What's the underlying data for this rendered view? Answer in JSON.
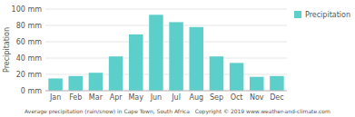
{
  "chart_data": {
    "type": "bar",
    "xlabel": "Average precipitation (rain/snow) in Cape Town, South Africa   Copyright © 2019 www.weather-and-climate.com",
    "ylabel": "Precipitation",
    "categories": [
      "Jan",
      "Feb",
      "Mar",
      "Apr",
      "May",
      "Jun",
      "Jul",
      "Aug",
      "Sep",
      "Oct",
      "Nov",
      "Dec"
    ],
    "series": [
      {
        "name": "Precipitation",
        "color": "#5dcfcb",
        "values": [
          15,
          18,
          22,
          42,
          69,
          93,
          84,
          78,
          42,
          34,
          17,
          18
        ]
      }
    ],
    "ylim": [
      0,
      100
    ],
    "yticks": [
      {
        "value": 0,
        "label": "0 mm"
      },
      {
        "value": 20,
        "label": "20 mm"
      },
      {
        "value": 40,
        "label": "40 mm"
      },
      {
        "value": 60,
        "label": "60 mm"
      },
      {
        "value": 80,
        "label": "80 mm"
      },
      {
        "value": 100,
        "label": "100 mm"
      }
    ],
    "grid": true,
    "legend": "right"
  }
}
